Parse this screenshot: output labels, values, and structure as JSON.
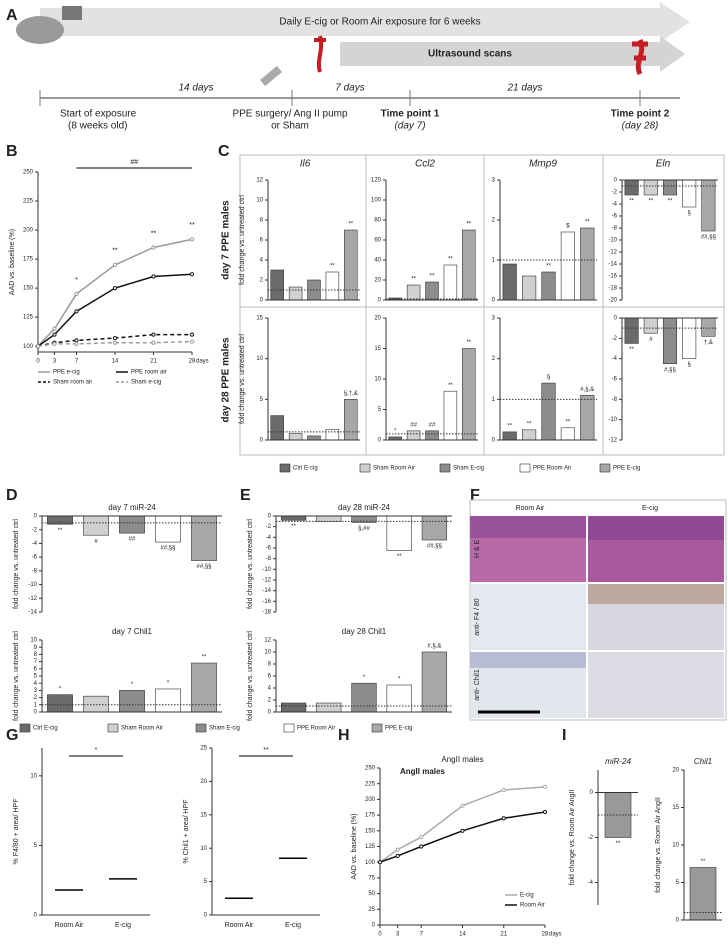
{
  "panel_labels": [
    "A",
    "B",
    "C",
    "D",
    "E",
    "F",
    "G",
    "H",
    "I"
  ],
  "timeline": {
    "exposure": "Daily E-cig or Room Air exposure for 6 weeks",
    "ultrasound": "Ultrasound scans",
    "start": "Start of exposure",
    "start_age": "(8 weeks old)",
    "d14": "14 days",
    "surgery": "PPE surgery/ Ang II pump",
    "sham": "or Sham",
    "d7": "7 days",
    "tp1": "Time point 1",
    "tp1_day": "(day 7)",
    "d21": "21 days",
    "tp2": "Time point 2",
    "tp2_day": "(day 28)"
  },
  "panel_c": {
    "columns": [
      "Il6",
      "Ccl2",
      "Mmp9",
      "Eln"
    ],
    "rows": [
      "day 7 PPE males",
      "day 28 PPE males"
    ]
  },
  "legend": {
    "labels": [
      "Ctrl E-cig",
      "Sham Room Air",
      "Sham E-cig",
      "PPE Room Air",
      "PPE E-cig"
    ],
    "colors": [
      "#6b6b6b",
      "#d0d0d0",
      "#8c8c8c",
      "#ffffff",
      "#a8a8a8"
    ]
  },
  "histology": {
    "columns": [
      "Room Air",
      "E-cig"
    ],
    "rows": [
      "H & E",
      "anti- F4 / 80",
      "anti- Chil1"
    ]
  },
  "chart_data": [
    {
      "type": "line",
      "ylabel": "AAD vs. baseline (%)",
      "x_unit": "days",
      "x": [
        0,
        3,
        7,
        14,
        21,
        28
      ],
      "xlim": [
        0,
        28
      ],
      "xticks": [
        0,
        3,
        7,
        14,
        21,
        28
      ],
      "ylim": [
        95,
        250
      ],
      "yticks": [
        100,
        125,
        150,
        175,
        200,
        225,
        250
      ],
      "top_annotation": "##",
      "annotations": [
        null,
        null,
        "*",
        "**",
        "**",
        "**"
      ],
      "series": [
        {
          "name": "PPE e-cig",
          "color": "#9a9a9a",
          "dash": false,
          "values": [
            100,
            115,
            145,
            170,
            185,
            192
          ]
        },
        {
          "name": "PPE room air",
          "color": "#111111",
          "dash": false,
          "values": [
            100,
            110,
            130,
            150,
            160,
            162
          ]
        },
        {
          "name": "Sham room air",
          "color": "#111111",
          "dash": true,
          "values": [
            100,
            103,
            105,
            107,
            110,
            110
          ]
        },
        {
          "name": "Sham e-cig",
          "color": "#9a9a9a",
          "dash": true,
          "values": [
            100,
            102,
            102,
            103,
            103,
            104
          ]
        }
      ]
    },
    {
      "type": "bar",
      "ylabel": "fold change vs. untreated ctrl",
      "ylim": [
        0,
        12
      ],
      "yticks": [
        0,
        2,
        4,
        6,
        8,
        10,
        12
      ],
      "ref": 1,
      "values": [
        3,
        1.3,
        2,
        2.8,
        7
      ],
      "annotations": [
        null,
        null,
        null,
        "**",
        "**"
      ]
    },
    {
      "type": "bar",
      "ylim": [
        0,
        120
      ],
      "yticks": [
        0,
        20,
        40,
        60,
        80,
        100,
        120
      ],
      "ref": 1,
      "values": [
        2,
        15,
        18,
        35,
        70
      ],
      "annotations": [
        null,
        "**",
        "**",
        "**",
        "**"
      ]
    },
    {
      "type": "bar",
      "ylim": [
        0,
        3
      ],
      "yticks": [
        0,
        1,
        2,
        3
      ],
      "ref": 1,
      "values": [
        0.9,
        0.6,
        0.7,
        1.7,
        1.8
      ],
      "annotations": [
        null,
        null,
        "**",
        "$",
        "**"
      ]
    },
    {
      "type": "bar",
      "ylim": [
        -20,
        0
      ],
      "yticks": [
        0,
        -2,
        -4,
        -6,
        -8,
        -10,
        -12,
        -14,
        -16,
        -18,
        -20
      ],
      "ref": -1,
      "values": [
        -2.5,
        -2.5,
        -2.5,
        -4.5,
        -8.5
      ],
      "annotations": [
        "**",
        "**",
        "**",
        "§",
        "##,§§"
      ]
    },
    {
      "type": "bar",
      "ylabel": "fold change vs. untreated ctrl",
      "ylim": [
        0,
        15
      ],
      "yticks": [
        0,
        5,
        10,
        15
      ],
      "ref": 1,
      "values": [
        3,
        0.8,
        0.5,
        1.3,
        5
      ],
      "annotations": [
        null,
        null,
        null,
        null,
        "§,†,&"
      ]
    },
    {
      "type": "bar",
      "ylim": [
        0,
        20
      ],
      "yticks": [
        0,
        5,
        10,
        15,
        20
      ],
      "ref": 1,
      "values": [
        0.5,
        1.5,
        1.5,
        8,
        15
      ],
      "annotations": [
        "*",
        "##",
        "##",
        "**",
        "**"
      ]
    },
    {
      "type": "bar",
      "ylim": [
        0,
        3
      ],
      "yticks": [
        0,
        1,
        2,
        3
      ],
      "ref": 1,
      "values": [
        0.2,
        0.25,
        1.4,
        0.3,
        1.1
      ],
      "annotations": [
        "**",
        "**",
        "§",
        "**",
        "#,§,&"
      ]
    },
    {
      "type": "bar",
      "ylim": [
        -12,
        0
      ],
      "yticks": [
        0,
        -2,
        -4,
        -6,
        -8,
        -10,
        -12
      ],
      "ref": -1,
      "values": [
        -2.5,
        -1.5,
        -4.5,
        -4,
        -1.8
      ],
      "annotations": [
        "**",
        "#",
        "#,§§",
        "§",
        "†,&"
      ]
    },
    {
      "type": "bar",
      "title": "day 7 miR-24",
      "ylabel": "fold change vs. untreated ctrl",
      "ylim": [
        -14,
        0
      ],
      "yticks": [
        0,
        -2,
        -4,
        -6,
        -8,
        -10,
        -12,
        -14
      ],
      "ref": -1,
      "values": [
        -1.2,
        -2.8,
        -2.5,
        -3.8,
        -6.5
      ],
      "annotations": [
        "**",
        "#",
        "##",
        "##,§§",
        "##,§§"
      ]
    },
    {
      "type": "bar",
      "title": "day 7 Chil1",
      "ylabel": "fold change vs. untreated ctrl",
      "ylim": [
        0,
        10
      ],
      "yticks": [
        0,
        1,
        2,
        3,
        4,
        5,
        6,
        7,
        8,
        9,
        10
      ],
      "ref": 1,
      "values": [
        2.4,
        2.2,
        3,
        3.2,
        6.8
      ],
      "annotations": [
        "*",
        null,
        "*",
        "*",
        "**"
      ]
    },
    {
      "type": "bar",
      "title": "day 28 miR-24",
      "ylabel": "fold change vs. untreated ctrl",
      "ylim": [
        -18,
        0
      ],
      "yticks": [
        0,
        -2,
        -4,
        -6,
        -8,
        -10,
        -12,
        -14,
        -16,
        -18
      ],
      "ref": -1,
      "values": [
        -0.8,
        -1,
        -1.2,
        -6.5,
        -4.5
      ],
      "annotations": [
        "**",
        null,
        "§,##",
        "**",
        "##,§§"
      ]
    },
    {
      "type": "bar",
      "title": "day 28 Chil1",
      "ylabel": "fold change vs. untreated ctrl",
      "ylim": [
        0,
        12
      ],
      "yticks": [
        0,
        2,
        4,
        6,
        8,
        10,
        12
      ],
      "ref": 1,
      "values": [
        1.5,
        1.5,
        4.8,
        4.5,
        10
      ],
      "annotations": [
        null,
        null,
        "*",
        "*",
        "#,§,&"
      ]
    },
    {
      "type": "dot",
      "ylabel": "% F4/80 + area/ HPF",
      "categories": [
        "Room Air",
        "E-cig"
      ],
      "values": [
        1.8,
        2.6
      ],
      "ylim": [
        0,
        12
      ],
      "yticks": [
        0,
        5,
        10
      ],
      "annotation": "*"
    },
    {
      "type": "dot",
      "ylabel": "% Chil1 + area/ HPF",
      "categories": [
        "Room Air",
        "E-cig"
      ],
      "values": [
        2.5,
        8.5
      ],
      "ylim": [
        0,
        25
      ],
      "yticks": [
        0,
        5,
        10,
        15,
        20,
        25
      ],
      "annotation": "**"
    },
    {
      "type": "line",
      "title": "AngII males",
      "ylabel": "AAD vs. baseline (%)",
      "x_unit": "days",
      "x": [
        0,
        3,
        7,
        14,
        21,
        28
      ],
      "xlim": [
        0,
        28
      ],
      "xticks": [
        0,
        3,
        7,
        14,
        21,
        28
      ],
      "ylim": [
        0,
        250
      ],
      "yticks": [
        0,
        25,
        50,
        75,
        100,
        125,
        150,
        175,
        200,
        225,
        250
      ],
      "series": [
        {
          "name": "E-cig",
          "color": "#aaaaaa",
          "dash": false,
          "values": [
            100,
            120,
            140,
            190,
            215,
            220
          ]
        },
        {
          "name": "Room Air",
          "color": "#111111",
          "dash": false,
          "values": [
            100,
            110,
            125,
            150,
            170,
            180
          ]
        }
      ]
    },
    {
      "type": "bar",
      "title": "miR-24",
      "ylabel": "fold change vs. Room Air AngII",
      "ylim": [
        -5,
        1
      ],
      "yticks": [
        0,
        -2,
        -4
      ],
      "ref": -1,
      "values": [
        -2
      ],
      "annotations": [
        "**"
      ]
    },
    {
      "type": "bar",
      "title": "Chil1",
      "ylabel": "fold change vs. Room Air AngII",
      "ylim": [
        0,
        20
      ],
      "yticks": [
        0,
        5,
        10,
        15,
        20
      ],
      "ref": 1,
      "values": [
        7
      ],
      "annotations": [
        "**"
      ]
    }
  ]
}
